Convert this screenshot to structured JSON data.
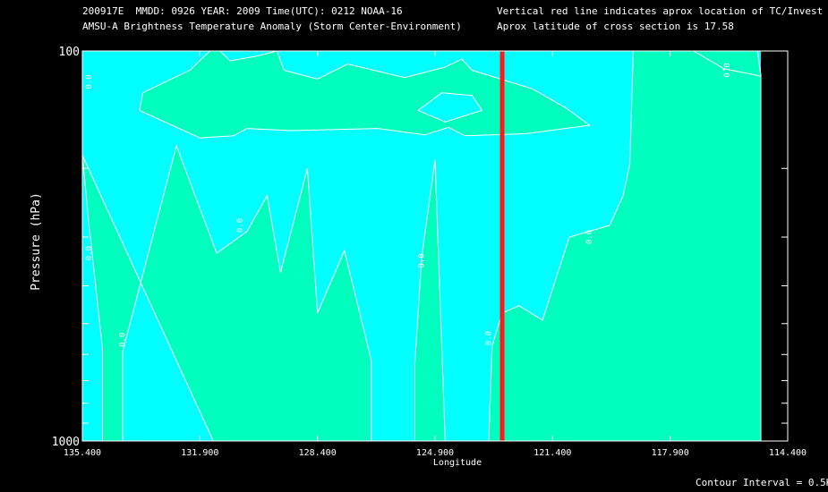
{
  "header": {
    "line1_left": "200917E  MMDD: 0926 YEAR: 2009 Time(UTC): 0212 NOAA-16",
    "line2_left": "AMSU-A Brightness Temperature Anomaly (Storm Center-Environment)",
    "line1_right": "Vertical red line indicates aprox location of TC/Invest",
    "line2_right": "Aprox latitude of cross section is 17.58"
  },
  "footer": {
    "contour_interval": "Contour Interval = 0.5K"
  },
  "colors": {
    "background": "#000000",
    "cold_fill": "#00ffff",
    "warm_fill": "#00ffbf",
    "contour_line": "#ffffff",
    "tc_line": "#ff1a1a",
    "frame": "#ffffff"
  },
  "chart_data": {
    "type": "contour-cross-section",
    "xlabel": "Longitude",
    "ylabel": "Pressure (hPa)",
    "xlim": [
      135.4,
      114.4
    ],
    "ylim": [
      1000,
      100
    ],
    "y_scale": "log",
    "x_ticks": [
      "135.400",
      "131.900",
      "128.400",
      "124.900",
      "121.400",
      "117.900",
      "114.400"
    ],
    "x_tick_values": [
      135.4,
      131.9,
      128.4,
      124.9,
      121.4,
      117.9,
      114.4
    ],
    "y_tick_labels": [
      {
        "value": 100,
        "label": "100"
      },
      {
        "value": 1000,
        "label": "1000"
      }
    ],
    "y_minor_ticks": [
      200,
      300,
      400,
      500,
      600,
      700,
      800,
      900
    ],
    "data_right_edge_lon": 115.2,
    "tc_longitude": 122.9,
    "contour_level_label": "0.0",
    "contour_labels": [
      {
        "lon": 135.2,
        "p": 120
      },
      {
        "lon": 135.2,
        "p": 330
      },
      {
        "lon": 134.2,
        "p": 550
      },
      {
        "lon": 130.7,
        "p": 280
      },
      {
        "lon": 125.3,
        "p": 345
      },
      {
        "lon": 123.3,
        "p": 545
      },
      {
        "lon": 120.3,
        "p": 300
      },
      {
        "lon": 116.2,
        "p": 112
      }
    ],
    "warm_regions": [
      {
        "name": "lower-left",
        "points": [
          [
            135.4,
            185
          ],
          [
            135.2,
            280
          ],
          [
            134.8,
            580
          ],
          [
            134.8,
            1000
          ],
          [
            134.2,
            1000
          ],
          [
            134.2,
            590
          ],
          [
            132.6,
            175
          ],
          [
            131.4,
            330
          ],
          [
            130.5,
            290
          ],
          [
            129.9,
            235
          ],
          [
            129.5,
            370
          ],
          [
            128.7,
            200
          ],
          [
            128.4,
            470
          ],
          [
            127.6,
            325
          ],
          [
            126.8,
            620
          ],
          [
            126.8,
            1000
          ],
          [
            131.5,
            1000
          ]
        ]
      },
      {
        "name": "center-spike",
        "points": [
          [
            125.5,
            1000
          ],
          [
            125.5,
            630
          ],
          [
            125.3,
            340
          ],
          [
            124.9,
            190
          ],
          [
            124.6,
            1000
          ]
        ]
      },
      {
        "name": "right-big",
        "points": [
          [
            123.3,
            1000
          ],
          [
            123.2,
            570
          ],
          [
            122.9,
            470
          ],
          [
            122.4,
            450
          ],
          [
            121.7,
            490
          ],
          [
            120.9,
            300
          ],
          [
            119.7,
            280
          ],
          [
            119.3,
            235
          ],
          [
            119.1,
            195
          ],
          [
            119.0,
            80
          ],
          [
            116.6,
            80
          ],
          [
            116.3,
            112
          ],
          [
            115.9,
            80
          ],
          [
            115.3,
            80
          ],
          [
            115.2,
            115
          ],
          [
            115.2,
            1000
          ]
        ]
      },
      {
        "name": "upper-band",
        "points": [
          [
            133.7,
            142
          ],
          [
            131.9,
            167
          ],
          [
            130.9,
            165
          ],
          [
            130.5,
            158
          ],
          [
            129.2,
            160
          ],
          [
            126.6,
            158
          ],
          [
            125.2,
            164
          ],
          [
            124.5,
            157
          ],
          [
            124.0,
            165
          ],
          [
            122.2,
            163
          ],
          [
            120.3,
            155
          ],
          [
            121.0,
            140
          ],
          [
            122.0,
            125
          ],
          [
            123.8,
            112
          ],
          [
            124.1,
            105
          ],
          [
            124.6,
            110
          ],
          [
            125.8,
            117
          ],
          [
            127.5,
            108
          ],
          [
            128.4,
            118
          ],
          [
            129.4,
            112
          ],
          [
            129.6,
            93
          ],
          [
            130.2,
            103
          ],
          [
            131.0,
            106
          ],
          [
            131.3,
            80
          ],
          [
            131.6,
            80
          ],
          [
            132.2,
            112
          ],
          [
            133.6,
            128
          ]
        ]
      },
      {
        "name": "right-corner",
        "points": [
          [
            116.3,
            111
          ],
          [
            117.2,
            100
          ],
          [
            118.2,
            95
          ],
          [
            120.7,
            80
          ],
          [
            115.3,
            80
          ],
          [
            115.2,
            116
          ]
        ]
      }
    ],
    "cold_holes": [
      {
        "name": "upper-band-hole",
        "points": [
          [
            125.4,
            142
          ],
          [
            124.7,
            128
          ],
          [
            123.8,
            130
          ],
          [
            123.5,
            142
          ],
          [
            124.6,
            152
          ]
        ]
      }
    ]
  }
}
